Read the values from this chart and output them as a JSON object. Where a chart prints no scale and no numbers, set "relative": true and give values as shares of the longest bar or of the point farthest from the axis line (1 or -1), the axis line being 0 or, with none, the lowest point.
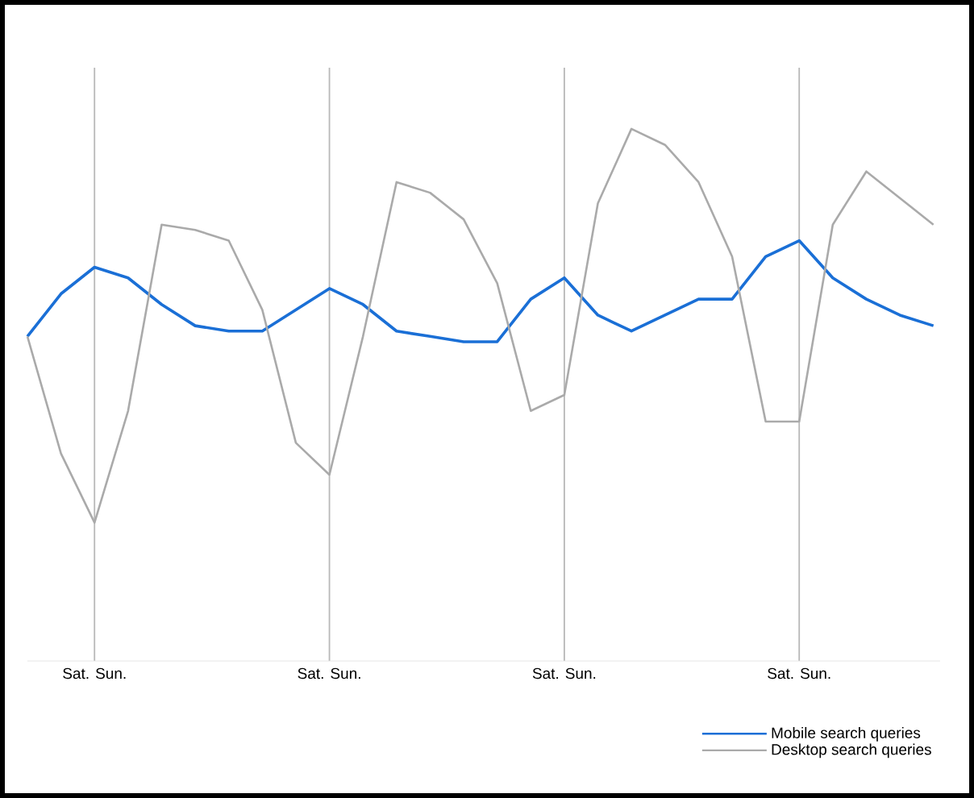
{
  "chart_data": {
    "type": "line",
    "relative": true,
    "grid": "x",
    "legend": "bottom right",
    "marker": "none",
    "line_style": "solid",
    "categories": [
      null,
      null,
      "Sat. Sun.",
      null,
      null,
      null,
      null,
      null,
      null,
      "Sat. Sun.",
      null,
      null,
      null,
      null,
      null,
      null,
      "Sat. Sun.",
      null,
      null,
      null,
      null,
      null,
      null,
      "Sat. Sun.",
      null,
      null,
      null,
      null
    ],
    "series": [
      {
        "name": "Mobile search queries",
        "color": "#1a6fd6",
        "values": [
          0.61,
          0.69,
          0.74,
          0.72,
          0.67,
          0.63,
          0.62,
          0.62,
          0.66,
          0.7,
          0.67,
          0.62,
          0.61,
          0.6,
          0.6,
          0.68,
          0.72,
          0.65,
          0.62,
          0.65,
          0.68,
          0.68,
          0.76,
          0.79,
          0.72,
          0.68,
          0.65,
          0.63
        ]
      },
      {
        "name": "Desktop search queries",
        "color": "#aaaaaa",
        "values": [
          0.61,
          0.39,
          0.26,
          0.47,
          0.82,
          0.81,
          0.79,
          0.66,
          0.41,
          0.35,
          0.61,
          0.9,
          0.88,
          0.83,
          0.71,
          0.47,
          0.5,
          0.86,
          1.0,
          0.97,
          0.9,
          0.76,
          0.45,
          0.45,
          0.82,
          0.92,
          0.87,
          0.82
        ]
      }
    ]
  }
}
